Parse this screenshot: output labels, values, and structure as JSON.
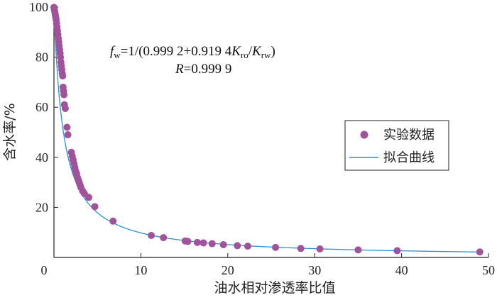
{
  "chart_data": {
    "type": "scatter",
    "xlabel": "油水相对渗透率比值",
    "ylabel": "含水率/%",
    "xlim": [
      0,
      50
    ],
    "ylim": [
      0,
      100
    ],
    "x_ticks": [
      "0",
      "10",
      "20",
      "30",
      "40",
      "50"
    ],
    "y_ticks": [
      "20",
      "40",
      "60",
      "80",
      "100"
    ],
    "annotation": {
      "equation_prefix": "f",
      "equation_sub": "w",
      "equation_mid": "=1/(0.999 2+0.919 4",
      "equation_k1": "K",
      "equation_k1_sub": "ro",
      "equation_slash": "/",
      "equation_k2": "K",
      "equation_k2_sub": "rw",
      "equation_close": ")",
      "r_label": "R",
      "r_value": "=0.999 9"
    },
    "legend": {
      "position": "right",
      "items": [
        {
          "label": "实验数据",
          "marker": "circle",
          "color": "#a0529a"
        },
        {
          "label": "拟合曲线",
          "marker": "line",
          "color": "#2a8fd6"
        }
      ]
    },
    "series": [
      {
        "name": "实验数据",
        "color": "#a0529a",
        "points": [
          [
            0.0,
            99.9
          ],
          [
            0.05,
            99.0
          ],
          [
            0.1,
            98.0
          ],
          [
            0.15,
            97.0
          ],
          [
            0.2,
            96.0
          ],
          [
            0.25,
            95.0
          ],
          [
            0.3,
            93.5
          ],
          [
            0.35,
            92.0
          ],
          [
            0.4,
            90.5
          ],
          [
            0.45,
            89.0
          ],
          [
            0.5,
            87.5
          ],
          [
            0.55,
            86.0
          ],
          [
            0.6,
            84.5
          ],
          [
            0.65,
            83.0
          ],
          [
            0.7,
            81.5
          ],
          [
            0.75,
            80.0
          ],
          [
            0.8,
            78.0
          ],
          [
            0.85,
            76.5
          ],
          [
            0.9,
            75.0
          ],
          [
            0.95,
            73.5
          ],
          [
            1.0,
            72.5
          ],
          [
            1.05,
            68.0
          ],
          [
            1.1,
            66.5
          ],
          [
            1.15,
            65.0
          ],
          [
            1.2,
            61.0
          ],
          [
            1.3,
            59.5
          ],
          [
            1.5,
            52.0
          ],
          [
            1.6,
            49.0
          ],
          [
            2.0,
            42.0
          ],
          [
            2.1,
            40.5
          ],
          [
            2.2,
            39.0
          ],
          [
            2.3,
            37.5
          ],
          [
            2.4,
            36.0
          ],
          [
            2.5,
            34.5
          ],
          [
            2.6,
            33.5
          ],
          [
            2.7,
            32.0
          ],
          [
            2.8,
            31.0
          ],
          [
            2.9,
            30.0
          ],
          [
            3.0,
            29.0
          ],
          [
            3.1,
            28.0
          ],
          [
            3.3,
            26.5
          ],
          [
            3.5,
            25.5
          ],
          [
            4.0,
            24.0
          ],
          [
            4.7,
            20.3
          ],
          [
            6.8,
            14.5
          ],
          [
            11.2,
            8.8
          ],
          [
            12.6,
            7.9
          ],
          [
            15.1,
            6.6
          ],
          [
            15.4,
            6.4
          ],
          [
            16.5,
            6.0
          ],
          [
            17.2,
            5.8
          ],
          [
            18.2,
            5.5
          ],
          [
            19.5,
            5.1
          ],
          [
            21.1,
            4.7
          ],
          [
            22.3,
            4.5
          ],
          [
            25.5,
            4.0
          ],
          [
            28.4,
            3.6
          ],
          [
            30.6,
            3.4
          ],
          [
            35.0,
            3.0
          ],
          [
            39.5,
            2.7
          ],
          [
            49.0,
            2.2
          ]
        ]
      },
      {
        "name": "拟合曲线",
        "color": "#2a8fd6",
        "function": "fw=1/(0.9992+0.9194*K)",
        "a": 0.9992,
        "b": 0.9194,
        "x_range": [
          0,
          49
        ]
      }
    ]
  }
}
